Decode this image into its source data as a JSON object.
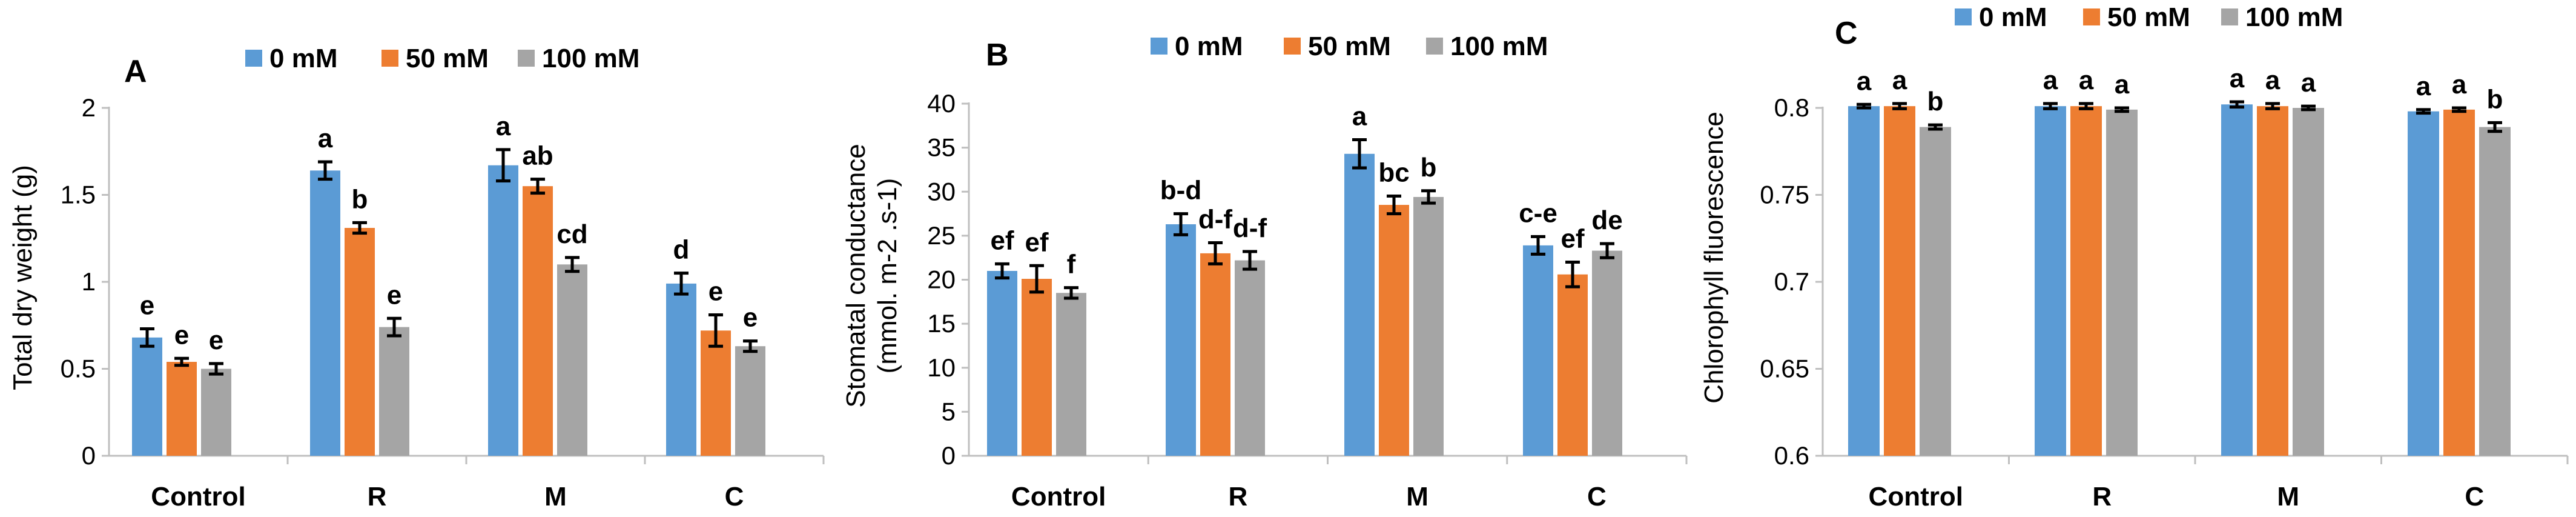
{
  "legend": {
    "items": [
      {
        "label": "0 mM",
        "color": "#5b9bd5"
      },
      {
        "label": "50 mM",
        "color": "#ed7d31"
      },
      {
        "label": "100 mM",
        "color": "#a5a5a5"
      }
    ]
  },
  "chart_data": [
    {
      "panel": "A",
      "type": "bar",
      "title": "",
      "xlabel": "",
      "ylabel": "Total dry weight (g)",
      "ylim": [
        0,
        2
      ],
      "yticks": [
        0,
        0.5,
        1,
        1.5,
        2
      ],
      "ytick_labels": [
        "0",
        "0.5",
        "1",
        "1.5",
        "2"
      ],
      "categories": [
        "Control",
        "R",
        "M",
        "C"
      ],
      "series": [
        {
          "name": "0 mM",
          "values": [
            0.68,
            1.64,
            1.67,
            0.99
          ],
          "errors": [
            0.05,
            0.05,
            0.09,
            0.06
          ],
          "letters": [
            "e",
            "a",
            "a",
            "d"
          ]
        },
        {
          "name": "50 mM",
          "values": [
            0.54,
            1.31,
            1.55,
            0.72
          ],
          "errors": [
            0.02,
            0.03,
            0.04,
            0.09
          ],
          "letters": [
            "e",
            "b",
            "ab",
            "e"
          ]
        },
        {
          "name": "100 mM",
          "values": [
            0.5,
            0.74,
            1.1,
            0.63
          ],
          "errors": [
            0.03,
            0.05,
            0.04,
            0.03
          ],
          "letters": [
            "e",
            "e",
            "cd",
            "e"
          ]
        }
      ]
    },
    {
      "panel": "B",
      "type": "bar",
      "title": "",
      "xlabel": "",
      "ylabel": "Stomatal conductance",
      "ylabel_line2": "(mmol. m-2 .s-1)",
      "ylim": [
        0,
        40
      ],
      "yticks": [
        0,
        5,
        10,
        15,
        20,
        25,
        30,
        35,
        40
      ],
      "ytick_labels": [
        "0",
        "5",
        "10",
        "15",
        "20",
        "25",
        "30",
        "35",
        "40"
      ],
      "categories": [
        "Control",
        "R",
        "M",
        "C"
      ],
      "series": [
        {
          "name": "0 mM",
          "values": [
            21.0,
            26.3,
            34.3,
            23.9
          ],
          "errors": [
            0.8,
            1.2,
            1.6,
            1.0
          ],
          "letters": [
            "ef",
            "b-d",
            "a",
            "c-e"
          ]
        },
        {
          "name": "50 mM",
          "values": [
            20.1,
            23.0,
            28.5,
            20.6
          ],
          "errors": [
            1.5,
            1.2,
            1.0,
            1.4
          ],
          "letters": [
            "ef",
            "d-f",
            "bc",
            "ef"
          ]
        },
        {
          "name": "100 mM",
          "values": [
            18.5,
            22.2,
            29.4,
            23.3
          ],
          "errors": [
            0.6,
            1.0,
            0.7,
            0.8
          ],
          "letters": [
            "f",
            "d-f",
            "b",
            "de"
          ]
        }
      ]
    },
    {
      "panel": "C",
      "type": "bar",
      "title": "",
      "xlabel": "",
      "ylabel": "Chlorophyll fluorescence",
      "ylim": [
        0.6,
        0.8
      ],
      "yticks": [
        0.6,
        0.65,
        0.7,
        0.75,
        0.8
      ],
      "ytick_labels": [
        "0.6",
        "0.65",
        "0.7",
        "0.75",
        "0.8"
      ],
      "categories": [
        "Control",
        "R",
        "M",
        "C"
      ],
      "series": [
        {
          "name": "0 mM",
          "values": [
            0.801,
            0.801,
            0.802,
            0.798
          ],
          "errors": [
            0.001,
            0.0015,
            0.0015,
            0.001
          ],
          "letters": [
            "a",
            "a",
            "a",
            "a"
          ]
        },
        {
          "name": "50 mM",
          "values": [
            0.801,
            0.801,
            0.801,
            0.799
          ],
          "errors": [
            0.0015,
            0.0015,
            0.0015,
            0.001
          ],
          "letters": [
            "a",
            "a",
            "a",
            "a"
          ]
        },
        {
          "name": "100 mM",
          "values": [
            0.789,
            0.799,
            0.8,
            0.789
          ],
          "errors": [
            0.0012,
            0.001,
            0.001,
            0.0025
          ],
          "letters": [
            "b",
            "a",
            "a",
            "b"
          ]
        }
      ]
    }
  ]
}
